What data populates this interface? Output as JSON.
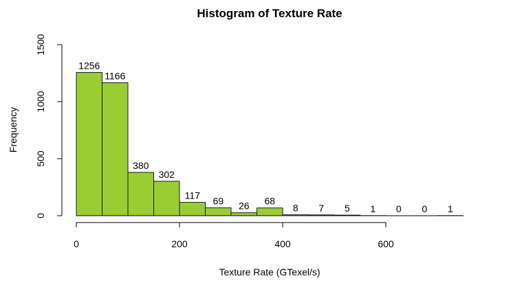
{
  "chart_data": {
    "type": "bar",
    "subtype": "histogram",
    "title": "Histogram of Texture Rate",
    "xlabel": "Texture Rate (GTexel/s)",
    "ylabel": "Frequency",
    "bin_edges": [
      0,
      50,
      100,
      150,
      200,
      250,
      300,
      350,
      400,
      450,
      500,
      550,
      600,
      650,
      700,
      750
    ],
    "values": [
      1256,
      1166,
      380,
      302,
      117,
      69,
      26,
      68,
      8,
      7,
      5,
      1,
      0,
      0,
      1
    ],
    "value_labels": [
      "1256",
      "1166",
      "380",
      "302",
      "117",
      "69",
      "26",
      "68",
      "8",
      "7",
      "5",
      "1",
      "0",
      "0",
      "1"
    ],
    "xlim": [
      0,
      750
    ],
    "ylim": [
      0,
      1500
    ],
    "x_ticks": [
      0,
      200,
      400,
      600
    ],
    "x_tick_labels": [
      "0",
      "200",
      "400",
      "600"
    ],
    "y_ticks": [
      0,
      500,
      1000,
      1500
    ],
    "y_tick_labels": [
      "0",
      "500",
      "1000",
      "1500"
    ],
    "bar_color": "#9ACD32",
    "grid": false,
    "legend": "none"
  }
}
